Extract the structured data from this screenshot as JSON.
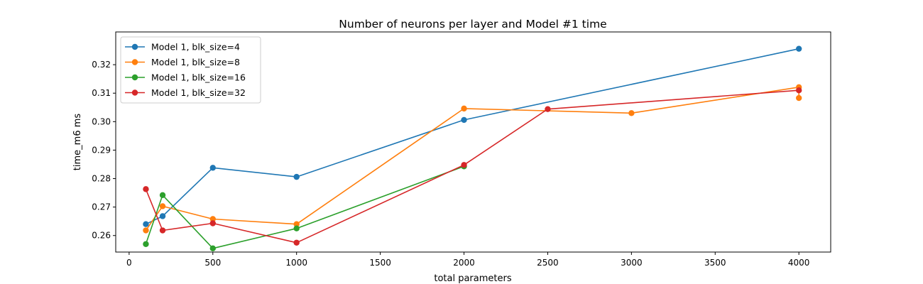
{
  "chart_data": {
    "type": "line",
    "title": "Number of neurons per layer and Model #1 time",
    "xlabel": "total parameters",
    "ylabel": "time_m6 ms",
    "xlim": [
      -80,
      4190
    ],
    "ylim": [
      0.2542,
      0.3315
    ],
    "xticks": [
      0,
      500,
      1000,
      1500,
      2000,
      2500,
      3000,
      3500,
      4000
    ],
    "yticks": [
      0.26,
      0.27,
      0.28,
      0.29,
      0.3,
      0.31,
      0.32
    ],
    "ytick_labels": [
      "0.26",
      "0.27",
      "0.28",
      "0.29",
      "0.30",
      "0.31",
      "0.32"
    ],
    "grid": false,
    "legend_position": "top-left",
    "series": [
      {
        "name": "Model 1, blk_size=4",
        "color": "#1f77b4",
        "x": [
          100,
          200,
          500,
          1000,
          2000,
          4000
        ],
        "y": [
          0.264,
          0.2668,
          0.2838,
          0.2806,
          0.3006,
          0.3256
        ]
      },
      {
        "name": "Model 1, blk_size=8",
        "color": "#ff7f0e",
        "x": [
          100,
          200,
          500,
          1000,
          2000,
          3000,
          4000,
          4000
        ],
        "y": [
          0.2618,
          0.2703,
          0.2658,
          0.264,
          0.3046,
          0.303,
          0.3121,
          0.3083
        ]
      },
      {
        "name": "Model 1, blk_size=16",
        "color": "#2ca02c",
        "x": [
          100,
          200,
          500,
          1000,
          2000
        ],
        "y": [
          0.257,
          0.2742,
          0.2555,
          0.2625,
          0.2843
        ]
      },
      {
        "name": "Model 1, blk_size=32",
        "color": "#d62728",
        "x": [
          100,
          200,
          500,
          1000,
          2000,
          2500,
          4000
        ],
        "y": [
          0.2763,
          0.2618,
          0.2643,
          0.2575,
          0.2848,
          0.3044,
          0.311
        ]
      }
    ]
  }
}
